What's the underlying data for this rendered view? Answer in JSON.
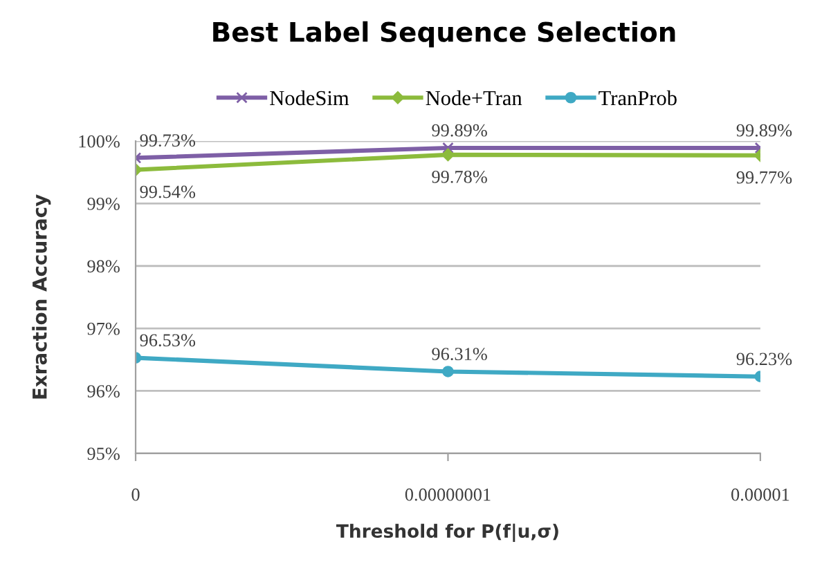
{
  "chart_data": {
    "type": "line",
    "title": "Best Label Sequence Selection",
    "xlabel": "Threshold for P(f|u,σ)",
    "ylabel": "Exraction Accuracy",
    "categories": [
      "0",
      "0.00000001",
      "0.00001"
    ],
    "series": [
      {
        "name": "NodeSim",
        "color": "#7e5fa6",
        "marker": "cross",
        "values": [
          99.73,
          99.89,
          99.89
        ],
        "value_labels": [
          "99.73%",
          "99.89%",
          "99.89%"
        ]
      },
      {
        "name": "Node+Tran",
        "color": "#8cbb3c",
        "marker": "diamond",
        "values": [
          99.54,
          99.78,
          99.77
        ],
        "value_labels": [
          "99.54%",
          "99.78%",
          "99.77%"
        ]
      },
      {
        "name": "TranProb",
        "color": "#3fa9c4",
        "marker": "circle",
        "values": [
          96.53,
          96.31,
          96.23
        ],
        "value_labels": [
          "96.53%",
          "96.31%",
          "96.23%"
        ]
      }
    ],
    "ylim": [
      95,
      100
    ],
    "yticks": [
      {
        "value": 95,
        "label": "95%"
      },
      {
        "value": 96,
        "label": "96%"
      },
      {
        "value": 97,
        "label": "97%"
      },
      {
        "value": 98,
        "label": "98%"
      },
      {
        "value": 99,
        "label": "99%"
      },
      {
        "value": 100,
        "label": "100%"
      }
    ],
    "grid": "y",
    "legend": "top",
    "line_style": "solid"
  }
}
